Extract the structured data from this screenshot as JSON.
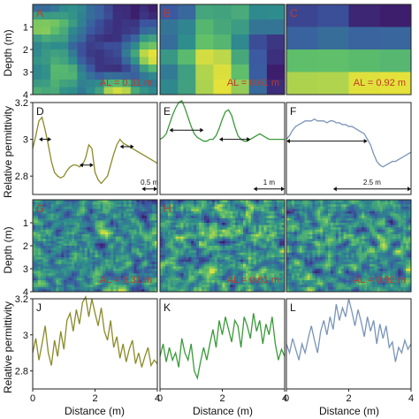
{
  "figure": {
    "ylabel_depth": "Depth (m)",
    "ylabel_perm": "Relative permittivity",
    "xlabel": "Distance (m)"
  },
  "chart_data": [
    {
      "type": "heatmap",
      "panel": "A",
      "al_label": "AL = 0.31 m",
      "xlim": [
        0,
        4
      ],
      "ylim": [
        4,
        0
      ],
      "x_ticks": [],
      "y_ticks": [
        "1",
        "2",
        "3",
        "4"
      ],
      "colors": [
        "#3d1e6d",
        "#3b5aa2",
        "#2e8e8c",
        "#5fbf6a",
        "#e5e23a"
      ],
      "texture": {
        "cells_x": 14,
        "cells_y": 12,
        "seed": 11,
        "smooth": 2
      }
    },
    {
      "type": "heatmap",
      "panel": "B",
      "al_label": "AL = 0.61 m",
      "xlim": [
        0,
        4
      ],
      "ylim": [
        4,
        0
      ],
      "x_ticks": [],
      "y_ticks": [],
      "colors": [
        "#3d1e6d",
        "#3b5aa2",
        "#2e8e8c",
        "#5fbf6a",
        "#e5e23a"
      ],
      "texture": {
        "cells_x": 7,
        "cells_y": 6,
        "seed": 23,
        "smooth": 2
      }
    },
    {
      "type": "heatmap",
      "panel": "C",
      "al_label": "AL = 0.92 m",
      "xlim": [
        0,
        4
      ],
      "ylim": [
        4,
        0
      ],
      "x_ticks": [],
      "y_ticks": [],
      "colors": [
        "#3d1e6d",
        "#3b5aa2",
        "#2e8e8c",
        "#5fbf6a",
        "#e5e23a"
      ],
      "texture": {
        "cells_x": 4,
        "cells_y": 4,
        "seed": 37,
        "smooth": 2
      }
    },
    {
      "type": "line",
      "panel": "D",
      "xlim": [
        0,
        4
      ],
      "ylim": [
        2.7,
        3.2
      ],
      "x_ticks": [],
      "y_ticks": [
        "2.8",
        "3",
        "3.2"
      ],
      "color": "#8a8a2a",
      "scale_bar": "0.5 m",
      "x": [
        0.0,
        0.1,
        0.2,
        0.3,
        0.4,
        0.5,
        0.6,
        0.7,
        0.8,
        0.9,
        1.0,
        1.1,
        1.2,
        1.3,
        1.4,
        1.5,
        1.6,
        1.7,
        1.8,
        1.9,
        2.0,
        2.1,
        2.2,
        2.3,
        2.4,
        2.5,
        2.6,
        2.7,
        2.8,
        2.9,
        3.0,
        3.1,
        3.2,
        3.3,
        3.4,
        3.5,
        3.6,
        3.7,
        3.8,
        3.9,
        4.0
      ],
      "y": [
        2.95,
        3.02,
        3.1,
        3.12,
        3.05,
        2.97,
        2.88,
        2.82,
        2.8,
        2.79,
        2.8,
        2.83,
        2.85,
        2.86,
        2.86,
        2.85,
        2.86,
        2.9,
        2.97,
        2.95,
        2.82,
        2.78,
        2.76,
        2.78,
        2.8,
        2.86,
        2.92,
        2.97,
        3.0,
        2.98,
        2.97,
        2.96,
        2.95,
        2.94,
        2.93,
        2.92,
        2.91,
        2.9,
        2.89,
        2.88,
        2.87
      ],
      "arrows": [
        {
          "x0": 0.2,
          "x1": 0.6,
          "y": 3.0
        },
        {
          "x0": 1.5,
          "x1": 1.95,
          "y": 2.86
        },
        {
          "x0": 2.8,
          "x1": 3.25,
          "y": 2.96
        }
      ],
      "scale_x": [
        3.5,
        4.0
      ],
      "scale_y": 2.73
    },
    {
      "type": "line",
      "panel": "E",
      "xlim": [
        0,
        4
      ],
      "ylim": [
        2.7,
        3.2
      ],
      "x_ticks": [],
      "y_ticks": [],
      "color": "#3a9a3a",
      "scale_bar": "1 m",
      "x": [
        0.0,
        0.1,
        0.2,
        0.3,
        0.4,
        0.5,
        0.6,
        0.7,
        0.8,
        0.9,
        1.0,
        1.1,
        1.2,
        1.3,
        1.4,
        1.5,
        1.6,
        1.7,
        1.8,
        1.9,
        2.0,
        2.1,
        2.2,
        2.3,
        2.4,
        2.5,
        2.6,
        2.7,
        2.8,
        2.9,
        3.0,
        3.1,
        3.2,
        3.3,
        3.4,
        3.5,
        3.6,
        3.7,
        3.8,
        3.9,
        4.0
      ],
      "y": [
        3.0,
        3.01,
        3.03,
        3.08,
        3.13,
        3.17,
        3.2,
        3.21,
        3.17,
        3.12,
        3.07,
        3.03,
        3.01,
        3.0,
        2.99,
        2.99,
        3.0,
        3.0,
        3.02,
        3.06,
        3.11,
        3.15,
        3.16,
        3.13,
        3.07,
        3.02,
        3.0,
        2.99,
        2.99,
        3.0,
        3.01,
        3.02,
        3.03,
        3.02,
        3.01,
        3.0,
        3.0,
        3.0,
        3.0,
        3.0,
        3.0
      ],
      "arrows": [
        {
          "x0": 0.3,
          "x1": 1.4,
          "y": 3.05
        },
        {
          "x0": 1.9,
          "x1": 2.9,
          "y": 3.0
        }
      ],
      "scale_x": [
        3.0,
        4.0
      ],
      "scale_y": 2.73
    },
    {
      "type": "line",
      "panel": "F",
      "xlim": [
        0,
        4
      ],
      "ylim": [
        2.7,
        3.2
      ],
      "x_ticks": [],
      "y_ticks": [],
      "color": "#7a94b8",
      "scale_bar": "2.5 m",
      "x": [
        0.0,
        0.1,
        0.2,
        0.3,
        0.4,
        0.5,
        0.6,
        0.7,
        0.8,
        0.9,
        1.0,
        1.1,
        1.2,
        1.3,
        1.4,
        1.5,
        1.6,
        1.7,
        1.8,
        1.9,
        2.0,
        2.1,
        2.2,
        2.3,
        2.4,
        2.5,
        2.6,
        2.7,
        2.8,
        2.9,
        3.0,
        3.1,
        3.2,
        3.3,
        3.4,
        3.5,
        3.6,
        3.7,
        3.8,
        3.9,
        4.0
      ],
      "y": [
        3.0,
        3.02,
        3.05,
        3.07,
        3.08,
        3.09,
        3.1,
        3.1,
        3.1,
        3.11,
        3.1,
        3.1,
        3.1,
        3.09,
        3.1,
        3.1,
        3.09,
        3.09,
        3.08,
        3.08,
        3.07,
        3.07,
        3.06,
        3.05,
        3.04,
        3.03,
        3.0,
        2.97,
        2.92,
        2.88,
        2.86,
        2.85,
        2.86,
        2.87,
        2.88,
        2.88,
        2.89,
        2.9,
        2.91,
        2.92,
        2.93
      ],
      "arrows": [
        {
          "x0": 0.0,
          "x1": 2.6,
          "y": 2.99
        }
      ],
      "scale_x": [
        1.5,
        4.0
      ],
      "scale_y": 2.73
    },
    {
      "type": "heatmap",
      "panel": "G",
      "al_label": "AL = 0.31 m",
      "xlim": [
        0,
        4
      ],
      "ylim": [
        4,
        0
      ],
      "x_ticks": [],
      "y_ticks": [
        "1",
        "2",
        "3",
        "4"
      ],
      "colors": [
        "#3d1e6d",
        "#3b5aa2",
        "#2e8e8c",
        "#5fbf6a",
        "#e5e23a"
      ],
      "texture": {
        "cells_x": 48,
        "cells_y": 40,
        "seed": 51,
        "smooth": 1
      }
    },
    {
      "type": "heatmap",
      "panel": "H",
      "al_label": "AL = 0.61 m",
      "xlim": [
        0,
        4
      ],
      "ylim": [
        4,
        0
      ],
      "x_ticks": [],
      "y_ticks": [],
      "colors": [
        "#3d1e6d",
        "#3b5aa2",
        "#2e8e8c",
        "#5fbf6a",
        "#e5e23a"
      ],
      "texture": {
        "cells_x": 48,
        "cells_y": 40,
        "seed": 67,
        "smooth": 1
      }
    },
    {
      "type": "heatmap",
      "panel": "I",
      "al_label": "AL = 0.92 m",
      "xlim": [
        0,
        4
      ],
      "ylim": [
        4,
        0
      ],
      "x_ticks": [],
      "y_ticks": [],
      "colors": [
        "#3d1e6d",
        "#3b5aa2",
        "#2e8e8c",
        "#5fbf6a",
        "#e5e23a"
      ],
      "texture": {
        "cells_x": 48,
        "cells_y": 40,
        "seed": 83,
        "smooth": 1
      }
    },
    {
      "type": "line",
      "panel": "J",
      "xlim": [
        0,
        4
      ],
      "ylim": [
        2.7,
        3.2
      ],
      "x_ticks": [
        "0",
        "2",
        "4"
      ],
      "y_ticks": [
        "2.8",
        "3",
        "3.2"
      ],
      "color": "#8a8a2a",
      "x": [
        0.0,
        0.1,
        0.2,
        0.3,
        0.4,
        0.5,
        0.6,
        0.7,
        0.8,
        0.9,
        1.0,
        1.1,
        1.2,
        1.3,
        1.4,
        1.5,
        1.6,
        1.7,
        1.8,
        1.9,
        2.0,
        2.1,
        2.2,
        2.3,
        2.4,
        2.5,
        2.6,
        2.7,
        2.8,
        2.9,
        3.0,
        3.1,
        3.2,
        3.3,
        3.4,
        3.5,
        3.6,
        3.7,
        3.8,
        3.9,
        4.0
      ],
      "y": [
        2.9,
        2.98,
        2.86,
        2.95,
        3.05,
        2.9,
        2.83,
        2.97,
        2.88,
        3.02,
        2.92,
        3.08,
        3.12,
        3.02,
        3.14,
        3.06,
        3.18,
        3.21,
        3.1,
        3.2,
        3.12,
        3.05,
        3.15,
        3.02,
        2.97,
        3.08,
        2.93,
        2.99,
        2.87,
        2.95,
        2.85,
        2.92,
        2.97,
        2.84,
        2.9,
        2.82,
        2.88,
        2.93,
        2.83,
        2.86,
        2.84
      ]
    },
    {
      "type": "line",
      "panel": "K",
      "xlim": [
        0,
        4
      ],
      "ylim": [
        2.7,
        3.2
      ],
      "x_ticks": [
        "0",
        "2",
        "4"
      ],
      "y_ticks": [],
      "color": "#3a9a3a",
      "x": [
        0.0,
        0.1,
        0.2,
        0.3,
        0.4,
        0.5,
        0.6,
        0.7,
        0.8,
        0.9,
        1.0,
        1.1,
        1.2,
        1.3,
        1.4,
        1.5,
        1.6,
        1.7,
        1.8,
        1.9,
        2.0,
        2.1,
        2.2,
        2.3,
        2.4,
        2.5,
        2.6,
        2.7,
        2.8,
        2.9,
        3.0,
        3.1,
        3.2,
        3.3,
        3.4,
        3.5,
        3.6,
        3.7,
        3.8,
        3.9,
        4.0
      ],
      "y": [
        2.88,
        2.95,
        2.85,
        2.93,
        2.86,
        2.9,
        2.82,
        2.98,
        2.9,
        2.86,
        2.95,
        2.8,
        2.76,
        2.85,
        2.93,
        2.86,
        2.95,
        3.03,
        2.93,
        3.08,
        3.0,
        3.1,
        3.03,
        2.96,
        3.08,
        3.05,
        2.93,
        3.1,
        3.05,
        2.98,
        3.12,
        3.02,
        3.08,
        2.95,
        3.06,
        3.0,
        3.1,
        2.95,
        2.86,
        2.92,
        2.88
      ]
    },
    {
      "type": "line",
      "panel": "L",
      "xlim": [
        0,
        4
      ],
      "ylim": [
        2.7,
        3.2
      ],
      "x_ticks": [
        "0",
        "2",
        "4"
      ],
      "y_ticks": [],
      "color": "#7a94b8",
      "x": [
        0.0,
        0.1,
        0.2,
        0.3,
        0.4,
        0.5,
        0.6,
        0.7,
        0.8,
        0.9,
        1.0,
        1.1,
        1.2,
        1.3,
        1.4,
        1.5,
        1.6,
        1.7,
        1.8,
        1.9,
        2.0,
        2.1,
        2.2,
        2.3,
        2.4,
        2.5,
        2.6,
        2.7,
        2.8,
        2.9,
        3.0,
        3.1,
        3.2,
        3.3,
        3.4,
        3.5,
        3.6,
        3.7,
        3.8,
        3.9,
        4.0
      ],
      "y": [
        2.95,
        2.9,
        2.98,
        2.92,
        2.86,
        2.95,
        2.9,
        2.98,
        3.05,
        2.97,
        2.9,
        3.02,
        3.08,
        3.0,
        3.1,
        3.03,
        3.17,
        3.08,
        3.15,
        3.1,
        3.2,
        3.13,
        3.05,
        3.14,
        3.07,
        2.99,
        3.1,
        3.02,
        3.08,
        2.95,
        3.06,
        2.98,
        3.05,
        2.93,
        2.96,
        2.85,
        2.93,
        2.9,
        2.97,
        2.92,
        2.95
      ]
    }
  ]
}
